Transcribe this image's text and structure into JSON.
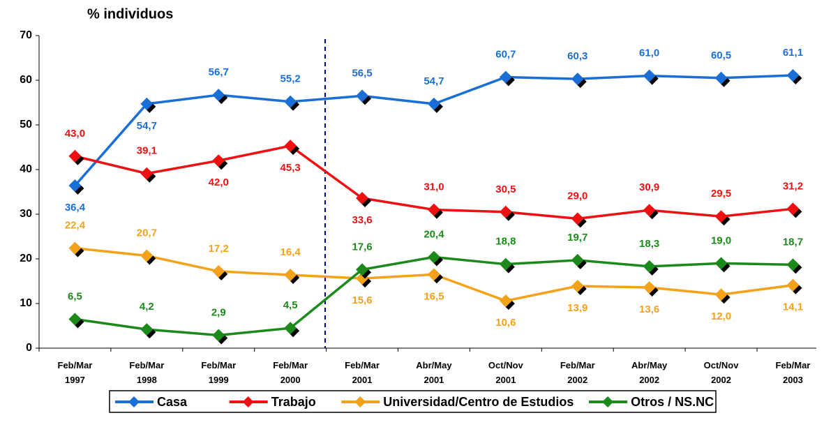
{
  "chart_data": {
    "type": "line",
    "y_label": "% individuos",
    "categories": [
      "Feb/Mar 1997",
      "Feb/Mar 1998",
      "Feb/Mar 1999",
      "Feb/Mar 2000",
      "Feb/Mar 2001",
      "Abr/May 2001",
      "Oct/Nov 2001",
      "Feb/Mar 2002",
      "Abr/May 2002",
      "Oct/Nov 2002",
      "Feb/Mar 2003"
    ],
    "series": [
      {
        "name": "Casa",
        "color": "#1a6fd6",
        "values": [
          36.4,
          54.7,
          56.7,
          55.2,
          56.5,
          54.7,
          60.7,
          60.3,
          61.0,
          60.5,
          61.1
        ],
        "value_labels": [
          "36,4",
          "54,7",
          "56,7",
          "55,2",
          "56,5",
          "54,7",
          "60,7",
          "60,3",
          "61,0",
          "60,5",
          "61,1"
        ]
      },
      {
        "name": "Trabajo",
        "color": "#ee1111",
        "values": [
          43.0,
          39.1,
          42.0,
          45.3,
          33.6,
          31.0,
          30.5,
          29.0,
          30.9,
          29.5,
          31.2
        ],
        "value_labels": [
          "43,0",
          "39,1",
          "42,0",
          "45,3",
          "33,6",
          "31,0",
          "30,5",
          "29,0",
          "30,9",
          "29,5",
          "31,2"
        ]
      },
      {
        "name": "Universidad/Centro de Estudios",
        "color": "#f5a21b",
        "values": [
          22.4,
          20.7,
          17.2,
          16.4,
          15.6,
          16.5,
          10.6,
          13.9,
          13.6,
          12.0,
          14.1
        ],
        "value_labels": [
          "22,4",
          "20,7",
          "17,2",
          "16,4",
          "15,6",
          "16,5",
          "10,6",
          "13,9",
          "13,6",
          "12,0",
          "14,1"
        ]
      },
      {
        "name": "Otros / NS.NC",
        "color": "#1b8a1b",
        "values": [
          6.5,
          4.2,
          2.9,
          4.5,
          17.6,
          20.4,
          18.8,
          19.7,
          18.3,
          19.0,
          18.7
        ],
        "value_labels": [
          "6,5",
          "4,2",
          "2,9",
          "4,5",
          "17,6",
          "20,4",
          "18,8",
          "19,7",
          "18,3",
          "19,0",
          "18,7"
        ]
      }
    ],
    "ylim": [
      0,
      70
    ],
    "yticks": [
      0,
      10,
      20,
      30,
      40,
      50,
      60,
      70
    ],
    "grid": false,
    "legend": "bottom"
  }
}
